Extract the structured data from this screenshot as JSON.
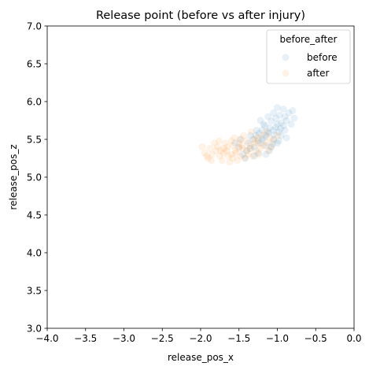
{
  "chart_data": {
    "type": "scatter",
    "title": "Release point (before vs after injury)",
    "xlabel": "release_pos_x",
    "ylabel": "release_pos_z",
    "xlim": [
      -4.0,
      0.0
    ],
    "ylim": [
      3.0,
      7.0
    ],
    "xticks": [
      "−4.0",
      "−3.5",
      "−3.0",
      "−2.5",
      "−2.0",
      "−1.5",
      "−1.0",
      "−0.5",
      "0.0"
    ],
    "yticks": [
      "3.0",
      "3.5",
      "4.0",
      "4.5",
      "5.0",
      "5.5",
      "6.0",
      "6.5",
      "7.0"
    ],
    "grid": false,
    "legend": {
      "title": "before_after",
      "placement": "top-right",
      "entries": [
        "before",
        "after"
      ]
    },
    "series": [
      {
        "name": "before",
        "color": "#1f77b4",
        "opacity": 0.1,
        "points": [
          [
            -1.15,
            5.55
          ],
          [
            -1.05,
            5.62
          ],
          [
            -0.95,
            5.72
          ],
          [
            -1.25,
            5.48
          ],
          [
            -1.1,
            5.65
          ],
          [
            -0.9,
            5.8
          ],
          [
            -1.0,
            5.7
          ],
          [
            -1.2,
            5.5
          ],
          [
            -1.3,
            5.4
          ],
          [
            -0.85,
            5.85
          ],
          [
            -1.12,
            5.58
          ],
          [
            -1.02,
            5.66
          ],
          [
            -0.98,
            5.6
          ],
          [
            -1.18,
            5.52
          ],
          [
            -1.08,
            5.74
          ],
          [
            -0.92,
            5.68
          ],
          [
            -1.22,
            5.45
          ],
          [
            -1.35,
            5.38
          ],
          [
            -1.4,
            5.35
          ],
          [
            -0.88,
            5.75
          ],
          [
            -1.05,
            5.5
          ],
          [
            -1.15,
            5.42
          ],
          [
            -0.97,
            5.82
          ],
          [
            -1.28,
            5.55
          ],
          [
            -1.1,
            5.35
          ],
          [
            -1.0,
            5.45
          ],
          [
            -0.95,
            5.55
          ],
          [
            -1.2,
            5.62
          ],
          [
            -1.32,
            5.5
          ],
          [
            -1.45,
            5.3
          ],
          [
            -1.25,
            5.32
          ],
          [
            -1.18,
            5.7
          ],
          [
            -1.02,
            5.78
          ],
          [
            -0.9,
            5.62
          ],
          [
            -0.82,
            5.7
          ],
          [
            -0.78,
            5.78
          ],
          [
            -0.8,
            5.88
          ],
          [
            -0.92,
            5.9
          ],
          [
            -1.05,
            5.85
          ],
          [
            -1.12,
            5.8
          ],
          [
            -1.38,
            5.45
          ],
          [
            -1.5,
            5.4
          ],
          [
            -1.42,
            5.25
          ],
          [
            -1.3,
            5.28
          ],
          [
            -1.15,
            5.3
          ],
          [
            -1.08,
            5.4
          ],
          [
            -0.98,
            5.48
          ],
          [
            -0.88,
            5.52
          ],
          [
            -1.22,
            5.75
          ],
          [
            -1.0,
            5.92
          ],
          [
            -1.27,
            5.62
          ],
          [
            -1.35,
            5.55
          ],
          [
            -1.48,
            5.5
          ],
          [
            -1.55,
            5.45
          ],
          [
            -1.12,
            5.6
          ],
          [
            -1.04,
            5.56
          ],
          [
            -0.96,
            5.64
          ],
          [
            -1.16,
            5.68
          ],
          [
            -1.24,
            5.58
          ],
          [
            -1.06,
            5.44
          ]
        ]
      },
      {
        "name": "after",
        "color": "#ff7f0e",
        "opacity": 0.1,
        "points": [
          [
            -1.35,
            5.42
          ],
          [
            -1.45,
            5.38
          ],
          [
            -1.55,
            5.35
          ],
          [
            -1.6,
            5.3
          ],
          [
            -1.7,
            5.32
          ],
          [
            -1.8,
            5.35
          ],
          [
            -1.25,
            5.45
          ],
          [
            -1.3,
            5.5
          ],
          [
            -1.4,
            5.48
          ],
          [
            -1.5,
            5.45
          ],
          [
            -1.65,
            5.4
          ],
          [
            -1.75,
            5.28
          ],
          [
            -1.85,
            5.3
          ],
          [
            -1.2,
            5.55
          ],
          [
            -1.15,
            5.6
          ],
          [
            -1.1,
            5.52
          ],
          [
            -1.28,
            5.35
          ],
          [
            -1.38,
            5.3
          ],
          [
            -1.48,
            5.28
          ],
          [
            -1.58,
            5.42
          ],
          [
            -1.68,
            5.45
          ],
          [
            -1.78,
            5.4
          ],
          [
            -1.88,
            5.38
          ],
          [
            -1.9,
            5.25
          ],
          [
            -1.62,
            5.2
          ],
          [
            -1.52,
            5.22
          ],
          [
            -1.42,
            5.25
          ],
          [
            -1.32,
            5.28
          ],
          [
            -1.22,
            5.38
          ],
          [
            -1.18,
            5.42
          ],
          [
            -1.05,
            5.48
          ],
          [
            -1.0,
            5.55
          ],
          [
            -1.12,
            5.35
          ],
          [
            -1.44,
            5.55
          ],
          [
            -1.34,
            5.6
          ],
          [
            -1.56,
            5.52
          ],
          [
            -1.66,
            5.35
          ],
          [
            -1.72,
            5.22
          ],
          [
            -1.82,
            5.45
          ],
          [
            -1.95,
            5.32
          ],
          [
            -1.26,
            5.52
          ],
          [
            -1.36,
            5.38
          ],
          [
            -1.46,
            5.42
          ],
          [
            -1.54,
            5.32
          ],
          [
            -1.64,
            5.28
          ],
          [
            -1.74,
            5.35
          ],
          [
            -1.3,
            5.45
          ],
          [
            -1.4,
            5.35
          ],
          [
            -1.5,
            5.38
          ],
          [
            -1.6,
            5.48
          ],
          [
            -1.24,
            5.3
          ],
          [
            -1.14,
            5.46
          ],
          [
            -1.08,
            5.4
          ],
          [
            -1.98,
            5.4
          ],
          [
            -1.92,
            5.28
          ],
          [
            -1.86,
            5.22
          ],
          [
            -1.76,
            5.48
          ],
          [
            -1.7,
            5.38
          ],
          [
            -1.58,
            5.25
          ],
          [
            -1.48,
            5.5
          ]
        ]
      }
    ]
  }
}
